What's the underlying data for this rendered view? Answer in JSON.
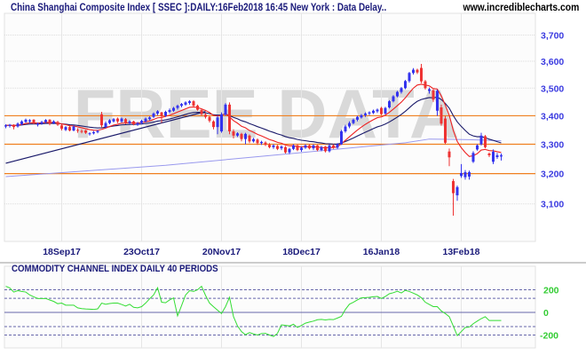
{
  "header": {
    "title": "China Shanghai Composite Index [ SSEC ]:DAILY:16Feb2018 16:45 New York : Data Delay..",
    "website": "www.incrediblecharts.com",
    "watermark": "FREE DATA"
  },
  "colors": {
    "up_candle": "#3333ee",
    "down_candle": "#ee3333",
    "short_ma": "#ee2222",
    "medium_ma": "#1a1a6a",
    "long_ma": "#9999ee",
    "trendline": "#1a1a6a",
    "horizontal_lines": "#f08020",
    "cci_line": "#33dd33",
    "price_labels": "#3a3ae0",
    "cci_labels": "#33cc33"
  },
  "chart_data": [
    {
      "type": "candlestick",
      "scale": "log",
      "ylim": [
        3020,
        3780
      ],
      "y_ticks": [
        "3,100",
        "3,200",
        "3,300",
        "3,400",
        "3,500",
        "3,600",
        "3,700"
      ],
      "y_tick_values": [
        3100,
        3200,
        3300,
        3400,
        3500,
        3600,
        3700
      ],
      "x_ticks": [
        "18Sep17",
        "23Oct17",
        "20Nov17",
        "18Dec17",
        "16Jan18",
        "13Feb18"
      ],
      "grid": true,
      "horizontal_lines": [
        3200,
        3300,
        3400
      ],
      "candles_ohlc": [
        [
          3362,
          3370,
          3356,
          3366
        ],
        [
          3364,
          3371,
          3358,
          3368
        ],
        [
          3368,
          3370,
          3352,
          3360
        ],
        [
          3362,
          3376,
          3358,
          3372
        ],
        [
          3370,
          3384,
          3366,
          3380
        ],
        [
          3378,
          3390,
          3375,
          3386
        ],
        [
          3380,
          3388,
          3374,
          3384
        ],
        [
          3386,
          3388,
          3370,
          3374
        ],
        [
          3368,
          3376,
          3362,
          3372
        ],
        [
          3372,
          3382,
          3368,
          3378
        ],
        [
          3378,
          3388,
          3374,
          3385
        ],
        [
          3386,
          3388,
          3366,
          3372
        ],
        [
          3374,
          3384,
          3370,
          3380
        ],
        [
          3378,
          3382,
          3364,
          3368
        ],
        [
          3366,
          3370,
          3348,
          3354
        ],
        [
          3350,
          3364,
          3346,
          3360
        ],
        [
          3360,
          3364,
          3345,
          3348
        ],
        [
          3348,
          3366,
          3345,
          3362
        ],
        [
          3350,
          3356,
          3340,
          3348
        ],
        [
          3346,
          3352,
          3338,
          3345
        ],
        [
          3348,
          3350,
          3336,
          3340
        ],
        [
          3336,
          3342,
          3330,
          3338
        ],
        [
          3338,
          3346,
          3334,
          3342
        ],
        [
          3342,
          3350,
          3338,
          3346
        ],
        [
          3405,
          3414,
          3358,
          3366
        ],
        [
          3360,
          3380,
          3356,
          3374
        ],
        [
          3374,
          3388,
          3370,
          3384
        ],
        [
          3380,
          3392,
          3376,
          3388
        ],
        [
          3390,
          3394,
          3374,
          3380
        ],
        [
          3380,
          3394,
          3376,
          3390
        ],
        [
          3388,
          3392,
          3370,
          3376
        ],
        [
          3374,
          3384,
          3370,
          3380
        ],
        [
          3380,
          3382,
          3366,
          3370
        ],
        [
          3368,
          3378,
          3364,
          3374
        ],
        [
          3374,
          3386,
          3370,
          3382
        ],
        [
          3380,
          3394,
          3376,
          3390
        ],
        [
          3388,
          3398,
          3384,
          3394
        ],
        [
          3396,
          3412,
          3392,
          3408
        ],
        [
          3408,
          3420,
          3402,
          3416
        ],
        [
          3412,
          3414,
          3375,
          3398
        ],
        [
          3400,
          3418,
          3396,
          3414
        ],
        [
          3414,
          3426,
          3408,
          3420
        ],
        [
          3418,
          3432,
          3414,
          3428
        ],
        [
          3428,
          3440,
          3422,
          3436
        ],
        [
          3436,
          3446,
          3430,
          3442
        ],
        [
          3440,
          3452,
          3436,
          3448
        ],
        [
          3446,
          3456,
          3440,
          3452
        ],
        [
          3452,
          3456,
          3432,
          3436
        ],
        [
          3436,
          3440,
          3418,
          3422
        ],
        [
          3420,
          3426,
          3400,
          3406
        ],
        [
          3404,
          3410,
          3390,
          3396
        ],
        [
          3396,
          3400,
          3376,
          3382
        ],
        [
          3380,
          3384,
          3352,
          3360
        ],
        [
          3360,
          3400,
          3335,
          3394
        ],
        [
          3345,
          3412,
          3340,
          3405
        ],
        [
          3405,
          3445,
          3400,
          3440
        ],
        [
          3440,
          3448,
          3335,
          3345
        ],
        [
          3345,
          3352,
          3320,
          3330
        ],
        [
          3330,
          3342,
          3325,
          3338
        ],
        [
          3336,
          3340,
          3310,
          3318
        ],
        [
          3318,
          3340,
          3300,
          3336
        ],
        [
          3330,
          3334,
          3304,
          3310
        ],
        [
          3310,
          3322,
          3306,
          3318
        ],
        [
          3316,
          3320,
          3298,
          3304
        ],
        [
          3304,
          3312,
          3298,
          3308
        ],
        [
          3306,
          3310,
          3294,
          3298
        ],
        [
          3298,
          3304,
          3286,
          3290
        ],
        [
          3290,
          3300,
          3284,
          3296
        ],
        [
          3294,
          3298,
          3280,
          3284
        ],
        [
          3286,
          3296,
          3280,
          3292
        ],
        [
          3290,
          3294,
          3268,
          3272
        ],
        [
          3272,
          3288,
          3266,
          3284
        ],
        [
          3284,
          3300,
          3280,
          3296
        ],
        [
          3296,
          3300,
          3276,
          3280
        ],
        [
          3280,
          3292,
          3274,
          3288
        ],
        [
          3288,
          3300,
          3284,
          3296
        ],
        [
          3296,
          3300,
          3282,
          3286
        ],
        [
          3286,
          3300,
          3280,
          3296
        ],
        [
          3296,
          3298,
          3276,
          3280
        ],
        [
          3280,
          3294,
          3276,
          3290
        ],
        [
          3292,
          3294,
          3272,
          3276
        ],
        [
          3276,
          3300,
          3272,
          3296
        ],
        [
          3296,
          3300,
          3284,
          3288
        ],
        [
          3288,
          3304,
          3284,
          3300
        ],
        [
          3300,
          3350,
          3298,
          3345
        ],
        [
          3345,
          3368,
          3340,
          3362
        ],
        [
          3362,
          3380,
          3356,
          3374
        ],
        [
          3374,
          3390,
          3370,
          3386
        ],
        [
          3386,
          3400,
          3380,
          3396
        ],
        [
          3394,
          3406,
          3390,
          3402
        ],
        [
          3402,
          3412,
          3396,
          3408
        ],
        [
          3408,
          3416,
          3402,
          3412
        ],
        [
          3410,
          3422,
          3406,
          3418
        ],
        [
          3416,
          3426,
          3410,
          3422
        ],
        [
          3428,
          3432,
          3402,
          3406
        ],
        [
          3408,
          3432,
          3404,
          3428
        ],
        [
          3430,
          3456,
          3426,
          3452
        ],
        [
          3452,
          3474,
          3448,
          3470
        ],
        [
          3470,
          3490,
          3466,
          3486
        ],
        [
          3486,
          3504,
          3480,
          3500
        ],
        [
          3500,
          3530,
          3496,
          3526
        ],
        [
          3526,
          3560,
          3520,
          3556
        ],
        [
          3556,
          3574,
          3550,
          3568
        ],
        [
          3568,
          3572,
          3552,
          3558
        ],
        [
          3575,
          3590,
          3518,
          3525
        ],
        [
          3525,
          3530,
          3495,
          3500
        ],
        [
          3490,
          3502,
          3480,
          3496
        ],
        [
          3492,
          3496,
          3450,
          3458
        ],
        [
          3418,
          3495,
          3400,
          3490
        ],
        [
          3430,
          3440,
          3365,
          3372
        ],
        [
          3390,
          3400,
          3300,
          3305
        ],
        [
          3275,
          3285,
          3225,
          3255
        ],
        [
          3175,
          3182,
          3062,
          3135
        ],
        [
          3128,
          3160,
          3110,
          3155
        ],
        [
          3192,
          3232,
          3186,
          3202
        ],
        [
          3188,
          3212,
          3180,
          3205
        ],
        [
          3190,
          3210,
          3180,
          3205
        ],
        [
          3240,
          3276,
          3236,
          3270
        ],
        [
          3282,
          3300,
          3278,
          3296
        ],
        [
          3300,
          3340,
          3296,
          3330
        ],
        [
          3328,
          3332,
          3286,
          3290
        ],
        [
          3268,
          3272,
          3256,
          3262
        ],
        [
          3240,
          3282,
          3232,
          3274
        ],
        [
          3256,
          3270,
          3250,
          3262
        ],
        [
          3258,
          3268,
          3244,
          3262
        ]
      ],
      "long_ma_points": [
        [
          0,
          3190
        ],
        [
          40,
          3228
        ],
        [
          73,
          3270
        ],
        [
          100,
          3305
        ],
        [
          106,
          3318
        ],
        [
          116,
          3316
        ],
        [
          124,
          3312
        ]
      ],
      "trendline_points": [
        [
          0,
          3235
        ],
        [
          50,
          3415
        ]
      ]
    },
    {
      "type": "line",
      "title": "COMMODITY CHANNEL INDEX DAILY 40 PERIODS",
      "ylim": [
        -260,
        260
      ],
      "y_ticks": [
        "200",
        "0",
        "-200"
      ],
      "y_tick_values": [
        200,
        0,
        -200
      ],
      "reference_lines": [
        200,
        125,
        0,
        -125,
        -200
      ],
      "values": [
        231,
        216,
        180,
        192,
        185,
        180,
        154,
        138,
        123,
        123,
        123,
        110,
        97,
        77,
        82,
        64,
        64,
        64,
        40,
        33,
        30,
        28,
        26,
        31,
        82,
        72,
        78,
        82,
        82,
        70,
        56,
        72,
        45,
        40,
        51,
        82,
        120,
        154,
        218,
        90,
        85,
        110,
        128,
        -31,
        60,
        154,
        192,
        185,
        200,
        231,
        150,
        82,
        50,
        20,
        -10,
        51,
        133,
        -38,
        -120,
        -170,
        -197,
        -179,
        -190,
        -200,
        -187,
        -185,
        -200,
        -213,
        -185,
        -110,
        -115,
        -120,
        -105,
        -133,
        -115,
        -95,
        -85,
        -77,
        -65,
        -62,
        -67,
        -62,
        -64,
        -50,
        -35,
        26,
        72,
        90,
        110,
        128,
        130,
        133,
        138,
        141,
        123,
        141,
        165,
        174,
        187,
        172,
        195,
        185,
        170,
        154,
        130,
        90,
        70,
        51,
        51,
        13,
        -10,
        -38,
        -120,
        -205,
        -170,
        -133,
        -130,
        -100,
        -77,
        -55,
        -38,
        -72,
        -72,
        -72,
        -72
      ]
    }
  ]
}
